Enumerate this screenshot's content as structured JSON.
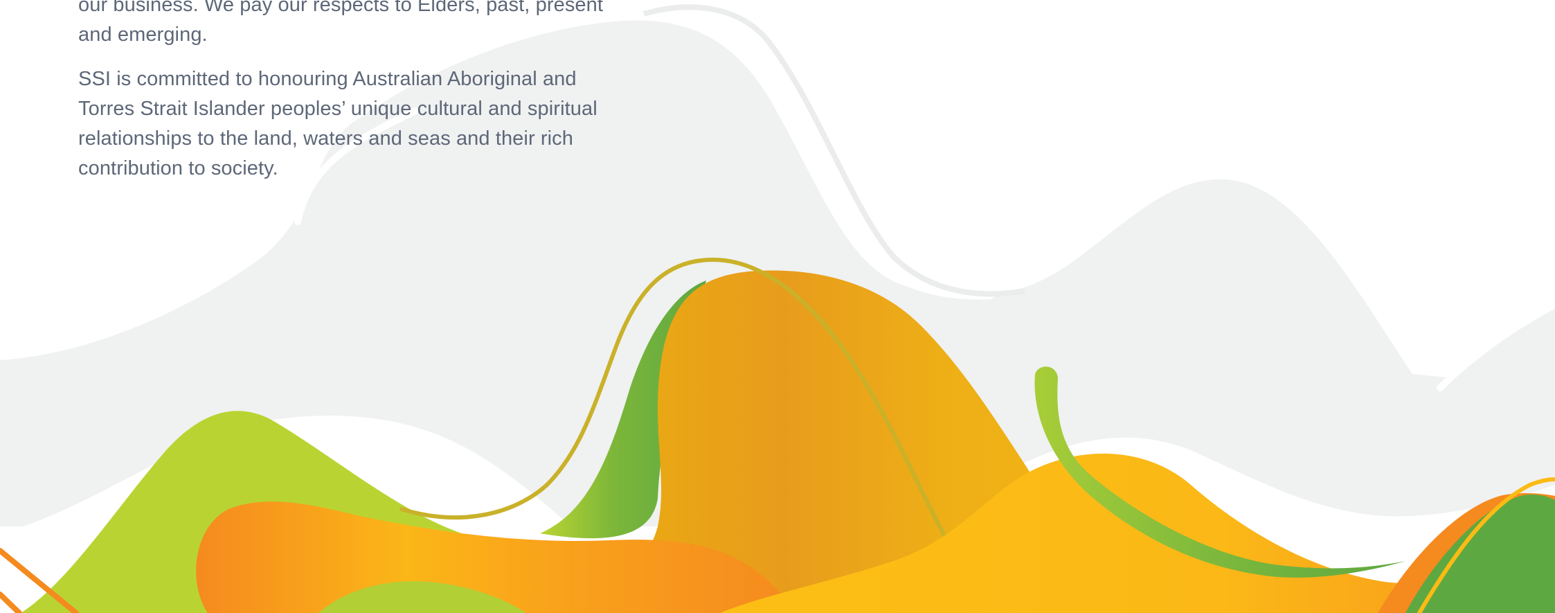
{
  "acknowledgement": {
    "paragraph_1": "our business. We pay our respects to Elders, past, present and emerging.",
    "paragraph_2": "SSI is committed to honouring Australian Aboriginal and Torres Strait Islander peoples’ unique cultural and spiritual relationships to the land, waters and seas and their rich contribution to society."
  },
  "artwork": {
    "icon": "abstract-landscape-waves",
    "colors": {
      "background_grey": "#f0f1f1",
      "lime": "#b9d432",
      "green": "#5ea842",
      "orange": "#f58a1f",
      "yellow": "#fbbb14",
      "gold": "#e9aa13",
      "olive_line": "#c9b129"
    }
  }
}
